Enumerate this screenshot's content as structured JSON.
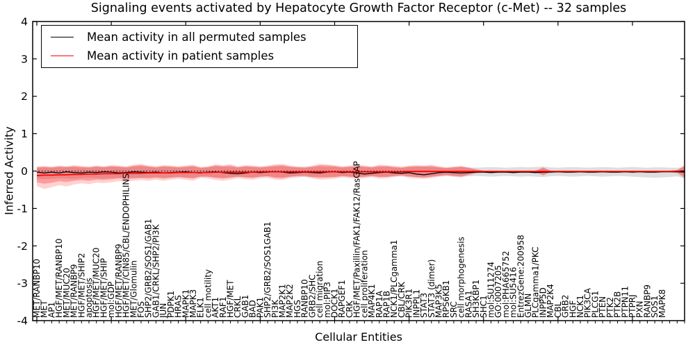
{
  "title": "Signaling events activated by Hepatocyte Growth Factor Receptor (c-Met) -- 32 samples",
  "axes": {
    "ylabel": "Inferred Activity",
    "xlabel": "Cellular Entities",
    "yticks": [
      "4",
      "3",
      "2",
      "1",
      "0",
      "-1",
      "-2",
      "-3",
      "-4"
    ],
    "ylim": [
      -4,
      4
    ]
  },
  "legend": {
    "items": [
      {
        "label": "Mean activity in all permuted samples",
        "color": "#000000"
      },
      {
        "label": "Mean activity in patient samples",
        "color": "#ff0000"
      }
    ]
  },
  "chart_data": {
    "type": "line",
    "title": "Signaling events activated by Hepatocyte Growth Factor Receptor (c-Met) -- 32 samples",
    "xlabel": "Cellular Entities",
    "ylabel": "Inferred Activity",
    "ylim": [
      -4,
      4
    ],
    "zero_line": true,
    "x_categories": [
      "MET/RANBP10",
      "MET",
      "AP1",
      "HGF/MET/RANBP10",
      "MET/MUC20",
      "MET/RANBP9",
      "HGF/MET/SHIP2",
      "apoptosis",
      "HGF/MET/MUC20",
      "HGF/MET/SHIP",
      "mol:GDP",
      "HGF/MET/RANBP9",
      "HGF/MET/CIN85/CBL/ENDOPHILINS",
      "MET/Glomulin",
      "FOS",
      "SHP2/GRB2/SOS1/GAB1",
      "GAB1/CRKL/SHP2/PI3K",
      "JUN",
      "PDPK1",
      "HRAS",
      "MAPK1",
      "MAPK3",
      "ELK1",
      "cell motility",
      "AKT1",
      "RAF1",
      "HGF/MET",
      "CRKL",
      "GAB1",
      "BAD",
      "PAK1",
      "SHP2/GRB2/SOS1GAB1",
      "PI3K",
      "MAP2K1",
      "MAP2K2",
      "HGS",
      "RANBP10",
      "GRB2/SHC",
      "cell migration",
      "mol:PIP3",
      "DOCK1",
      "RAPGEF1",
      "CRK",
      "HGF/MET/Paxillin/FAK1/FAK12/RasGAP",
      "cell proliferation",
      "MAP4K1",
      "RAP1A",
      "RAP1B",
      "NCK1/PLCgamma1",
      "CBL/CRK",
      "PIK3R1",
      "INPPL1",
      "STAT3",
      "STAT3 (dimer)",
      "MAP3K5",
      "RPS6KB1",
      "SRC",
      "cell morphogenesis",
      "RASA1",
      "SH3KBP1",
      "SHC1",
      "mol:SU11274",
      "GO:0007205",
      "mol:PHA665752",
      "mol:SU5416",
      "EntrezGene:200958",
      "GLMN",
      "PLCgamma1/PKC",
      "INPP5D",
      "MAP2K4",
      "CBL",
      "GRB2",
      "HGF",
      "NCK1",
      "PIK3CA",
      "PLCG1",
      "PTEN",
      "PTK2",
      "PTK2B",
      "PTPN11",
      "PTPRJ",
      "PXN",
      "RANBP9",
      "SOS1",
      "MAPK8"
    ],
    "series": [
      {
        "name": "Mean activity in all permuted samples",
        "color": "#000000",
        "values": [
          -0.03,
          -0.05,
          -0.03,
          -0.05,
          -0.02,
          -0.04,
          -0.05,
          -0.03,
          -0.04,
          -0.02,
          -0.03,
          -0.05,
          -0.04,
          -0.02,
          -0.03,
          -0.04,
          -0.03,
          -0.05,
          -0.04,
          -0.03,
          -0.02,
          -0.04,
          -0.05,
          -0.03,
          -0.02,
          -0.04,
          -0.06,
          -0.07,
          -0.05,
          -0.03,
          -0.04,
          -0.03,
          -0.02,
          -0.03,
          -0.05,
          -0.04,
          -0.03,
          -0.04,
          -0.05,
          -0.03,
          -0.02,
          -0.04,
          -0.03,
          -0.05,
          -0.08,
          -0.06,
          -0.04,
          -0.03,
          -0.05,
          -0.06,
          -0.04,
          -0.08,
          -0.1,
          -0.07,
          -0.04,
          -0.03,
          -0.04,
          -0.05,
          -0.04,
          -0.03,
          -0.03,
          -0.04,
          -0.03,
          -0.03,
          -0.04,
          -0.03,
          -0.03,
          -0.04,
          -0.03,
          -0.03,
          -0.02,
          -0.03,
          -0.03,
          -0.02,
          -0.03,
          -0.03,
          -0.02,
          -0.03,
          -0.03,
          -0.02,
          -0.03,
          -0.02,
          -0.03,
          -0.03,
          -0.02,
          -0.02,
          -0.02,
          -0.03
        ]
      },
      {
        "name": "Mean activity in patient samples",
        "color": "#ff0000",
        "values": [
          -0.12,
          -0.11,
          -0.11,
          -0.1,
          -0.1,
          -0.09,
          -0.09,
          -0.08,
          -0.08,
          -0.07,
          -0.07,
          -0.07,
          -0.06,
          -0.06,
          -0.06,
          -0.05,
          -0.05,
          -0.05,
          -0.05,
          -0.04,
          -0.04,
          -0.04,
          -0.04,
          -0.04,
          -0.03,
          -0.03,
          -0.03,
          -0.03,
          -0.03,
          -0.03,
          -0.02,
          -0.02,
          -0.02,
          -0.02,
          -0.02,
          -0.02,
          -0.02,
          -0.02,
          -0.02,
          -0.02,
          -0.02,
          -0.02,
          -0.02,
          -0.02,
          -0.02,
          -0.02,
          -0.02,
          -0.02,
          -0.02,
          -0.02,
          -0.01,
          -0.01,
          -0.01,
          -0.01,
          -0.01,
          -0.01,
          -0.01,
          -0.01,
          -0.01,
          -0.01,
          -0.01,
          -0.01,
          -0.01,
          -0.01,
          -0.01,
          -0.01,
          -0.01,
          -0.01,
          -0.01,
          -0.01,
          -0.01,
          -0.01,
          -0.01,
          -0.01,
          -0.01,
          -0.01,
          -0.01,
          -0.01,
          -0.01,
          -0.01,
          -0.01,
          -0.01,
          -0.01,
          -0.01,
          -0.01,
          -0.01,
          0.0,
          0.0
        ]
      }
    ],
    "bands": [
      {
        "name": "permuted-range",
        "color": "rgba(0,0,0,0.13)",
        "upper": [
          0.09,
          0.11,
          0.1,
          0.11,
          0.12,
          0.11,
          0.1,
          0.11,
          0.12,
          0.11,
          0.12,
          0.11,
          0.1,
          0.12,
          0.13,
          0.12,
          0.1,
          0.12,
          0.11,
          0.1,
          0.11,
          0.12,
          0.1,
          0.11,
          0.13,
          0.12,
          0.11,
          0.1,
          0.12,
          0.11,
          0.1,
          0.11,
          0.12,
          0.13,
          0.11,
          0.1,
          0.12,
          0.11,
          0.12,
          0.11,
          0.12,
          0.1,
          0.11,
          0.12,
          0.11,
          0.1,
          0.11,
          0.12,
          0.1,
          0.09,
          0.11,
          0.12,
          0.13,
          0.11,
          0.1,
          0.09,
          0.1,
          0.11,
          0.1,
          0.09,
          0.1,
          0.11,
          0.1,
          0.09,
          0.1,
          0.11,
          0.1,
          0.11,
          0.12,
          0.1,
          0.09,
          0.1,
          0.11,
          0.1,
          0.09,
          0.1,
          0.11,
          0.1,
          0.09,
          0.1,
          0.11,
          0.1,
          0.09,
          0.1,
          0.1,
          0.09,
          0.09,
          0.1
        ],
        "lower": [
          -0.21,
          -0.22,
          -0.21,
          -0.19,
          -0.2,
          -0.21,
          -0.19,
          -0.18,
          -0.19,
          -0.2,
          -0.19,
          -0.18,
          -0.17,
          -0.18,
          -0.19,
          -0.17,
          -0.16,
          -0.18,
          -0.17,
          -0.16,
          -0.17,
          -0.18,
          -0.16,
          -0.15,
          -0.17,
          -0.18,
          -0.16,
          -0.15,
          -0.16,
          -0.17,
          -0.15,
          -0.14,
          -0.16,
          -0.17,
          -0.15,
          -0.14,
          -0.15,
          -0.16,
          -0.15,
          -0.16,
          -0.16,
          -0.14,
          -0.15,
          -0.16,
          -0.15,
          -0.14,
          -0.15,
          -0.16,
          -0.14,
          -0.13,
          -0.15,
          -0.16,
          -0.17,
          -0.15,
          -0.14,
          -0.13,
          -0.14,
          -0.15,
          -0.14,
          -0.13,
          -0.14,
          -0.15,
          -0.14,
          -0.13,
          -0.14,
          -0.15,
          -0.14,
          -0.15,
          -0.16,
          -0.14,
          -0.13,
          -0.14,
          -0.15,
          -0.14,
          -0.13,
          -0.14,
          -0.15,
          -0.14,
          -0.13,
          -0.14,
          -0.15,
          -0.16,
          -0.17,
          -0.18,
          -0.17,
          -0.16,
          -0.14,
          -0.2
        ]
      },
      {
        "name": "patient-range-outer",
        "color": "rgba(255,30,30,0.20)",
        "upper": [
          0.13,
          0.14,
          0.12,
          0.15,
          0.13,
          0.16,
          0.14,
          0.12,
          0.15,
          0.13,
          0.16,
          0.15,
          0.13,
          0.17,
          0.19,
          0.15,
          0.13,
          0.16,
          0.15,
          0.13,
          0.15,
          0.17,
          0.11,
          0.13,
          0.18,
          0.16,
          0.18,
          0.13,
          0.16,
          0.15,
          0.13,
          0.15,
          0.18,
          0.19,
          0.15,
          0.13,
          0.11,
          0.15,
          0.19,
          0.18,
          0.16,
          0.13,
          0.15,
          0.17,
          0.15,
          0.13,
          0.17,
          0.16,
          0.14,
          0.12,
          0.15,
          0.16,
          0.15,
          0.17,
          0.13,
          0.1,
          0.12,
          0.14,
          0.1,
          0.05,
          0.01,
          0.01,
          0.01,
          0.01,
          0.01,
          0.01,
          0.01,
          0.01,
          0.1,
          0.01,
          0.01,
          0.01,
          0.01,
          0.01,
          0.01,
          0.01,
          0.01,
          0.01,
          0.01,
          0.01,
          0.01,
          0.01,
          0.01,
          0.01,
          0.01,
          0.01,
          0.02,
          0.16
        ],
        "lower": [
          -0.4,
          -0.48,
          -0.43,
          -0.38,
          -0.41,
          -0.36,
          -0.33,
          -0.35,
          -0.31,
          -0.32,
          -0.3,
          -0.27,
          -0.29,
          -0.26,
          -0.24,
          -0.26,
          -0.23,
          -0.26,
          -0.23,
          -0.21,
          -0.23,
          -0.26,
          -0.18,
          -0.2,
          -0.24,
          -0.26,
          -0.23,
          -0.19,
          -0.22,
          -0.23,
          -0.19,
          -0.18,
          -0.23,
          -0.24,
          -0.19,
          -0.17,
          -0.15,
          -0.2,
          -0.23,
          -0.22,
          -0.2,
          -0.17,
          -0.19,
          -0.21,
          -0.19,
          -0.16,
          -0.2,
          -0.19,
          -0.16,
          -0.14,
          -0.18,
          -0.2,
          -0.21,
          -0.19,
          -0.15,
          -0.12,
          -0.15,
          -0.17,
          -0.11,
          -0.06,
          -0.03,
          -0.03,
          -0.03,
          -0.03,
          -0.03,
          -0.03,
          -0.03,
          -0.03,
          -0.12,
          -0.03,
          -0.03,
          -0.03,
          -0.03,
          -0.03,
          -0.03,
          -0.03,
          -0.03,
          -0.03,
          -0.03,
          -0.03,
          -0.03,
          -0.03,
          -0.03,
          -0.03,
          -0.03,
          -0.03,
          -0.05,
          -0.2
        ]
      },
      {
        "name": "patient-range-inner",
        "color": "rgba(255,30,30,0.30)",
        "upper": [
          0.1,
          0.11,
          0.09,
          0.12,
          0.1,
          0.13,
          0.11,
          0.09,
          0.12,
          0.1,
          0.13,
          0.12,
          0.1,
          0.14,
          0.16,
          0.12,
          0.1,
          0.13,
          0.12,
          0.1,
          0.12,
          0.14,
          0.08,
          0.1,
          0.15,
          0.13,
          0.15,
          0.1,
          0.13,
          0.12,
          0.1,
          0.12,
          0.15,
          0.16,
          0.12,
          0.1,
          0.08,
          0.12,
          0.16,
          0.15,
          0.13,
          0.1,
          0.12,
          0.14,
          0.12,
          0.1,
          0.14,
          0.13,
          0.11,
          0.09,
          0.12,
          0.13,
          0.12,
          0.14,
          0.1,
          0.08,
          0.1,
          0.12,
          0.08,
          0.04,
          0.01,
          0.01,
          0.01,
          0.01,
          0.01,
          0.01,
          0.01,
          0.01,
          0.09,
          0.01,
          0.01,
          0.01,
          0.01,
          0.01,
          0.01,
          0.01,
          0.01,
          0.01,
          0.01,
          0.01,
          0.01,
          0.01,
          0.01,
          0.01,
          0.01,
          0.01,
          0.02,
          0.15
        ],
        "lower": [
          -0.3,
          -0.34,
          -0.31,
          -0.27,
          -0.29,
          -0.26,
          -0.24,
          -0.26,
          -0.23,
          -0.24,
          -0.22,
          -0.2,
          -0.22,
          -0.2,
          -0.18,
          -0.2,
          -0.18,
          -0.2,
          -0.18,
          -0.16,
          -0.18,
          -0.2,
          -0.14,
          -0.15,
          -0.18,
          -0.2,
          -0.18,
          -0.15,
          -0.17,
          -0.18,
          -0.15,
          -0.14,
          -0.18,
          -0.19,
          -0.15,
          -0.13,
          -0.12,
          -0.16,
          -0.18,
          -0.17,
          -0.16,
          -0.13,
          -0.15,
          -0.17,
          -0.15,
          -0.13,
          -0.16,
          -0.15,
          -0.13,
          -0.11,
          -0.14,
          -0.16,
          -0.17,
          -0.15,
          -0.12,
          -0.1,
          -0.12,
          -0.14,
          -0.09,
          -0.05,
          -0.03,
          -0.03,
          -0.03,
          -0.03,
          -0.03,
          -0.03,
          -0.03,
          -0.03,
          -0.1,
          -0.03,
          -0.03,
          -0.03,
          -0.03,
          -0.03,
          -0.03,
          -0.03,
          -0.03,
          -0.03,
          -0.03,
          -0.03,
          -0.03,
          -0.03,
          -0.03,
          -0.03,
          -0.03,
          -0.03,
          -0.04,
          -0.16
        ]
      }
    ]
  }
}
